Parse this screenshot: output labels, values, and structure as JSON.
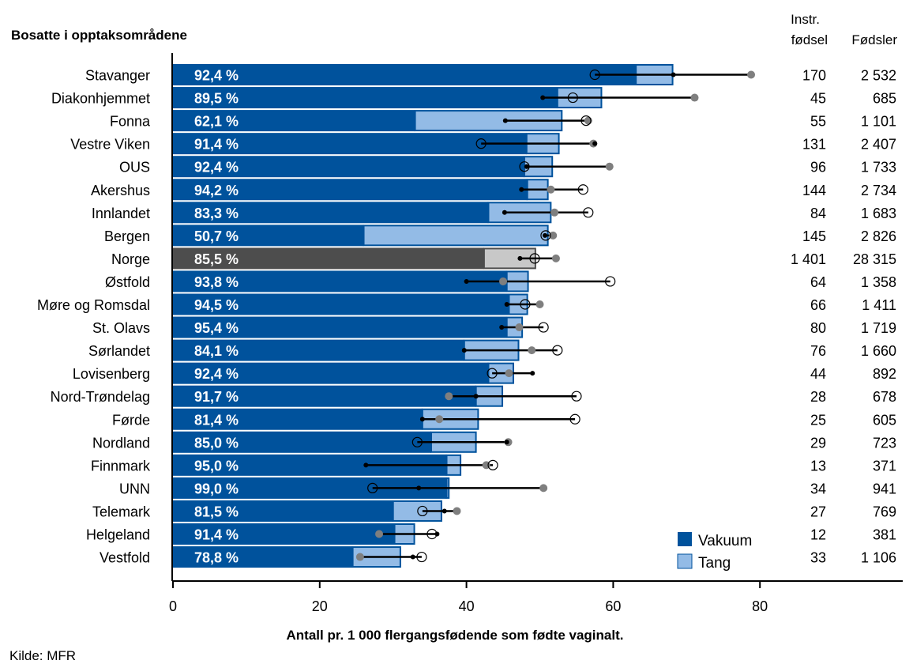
{
  "chart_data": {
    "type": "bar",
    "title": "Bosatte i opptaksområdene",
    "xlabel": "Antall pr. 1 000  flergangsfødende som fødte vaginalt.",
    "source": "Kilde: MFR",
    "xlim": [
      0,
      100
    ],
    "xticks": [
      "0",
      "20",
      "40",
      "60",
      "80"
    ],
    "xtick_values": [
      0,
      20,
      40,
      60,
      80
    ],
    "column_headers": {
      "instr_line1": "Instr.",
      "instr_line2": "fødsel",
      "births": "Fødsler"
    },
    "legend": [
      {
        "name": "Vakuum",
        "color": "#00529c"
      },
      {
        "name": "Tang",
        "color": "#93bbe6"
      }
    ],
    "highlight_colors": {
      "vakuum": "#4d4d4d",
      "tang": "#c8c8c8"
    },
    "categories": [
      "Stavanger",
      "Diakonhjemmet",
      "Fonna",
      "Vestre Viken",
      "OUS",
      "Akershus",
      "Innlandet",
      "Bergen",
      "Norge",
      "Østfold",
      "Møre og Romsdal",
      "St. Olavs",
      "Sørlandet",
      "Lovisenberg",
      "Nord-Trøndelag",
      "Førde",
      "Nordland",
      "Finnmark",
      "UNN",
      "Telemark",
      "Helgeland",
      "Vestfold"
    ],
    "highlight": "Norge",
    "series": [
      {
        "name": "Vakuum",
        "values": [
          63.1,
          52.4,
          33.0,
          48.2,
          47.9,
          48.3,
          43.0,
          26.0,
          42.4,
          45.5,
          45.8,
          45.5,
          39.7,
          43.0,
          41.3,
          34.0,
          35.2,
          37.3,
          37.3,
          30.0,
          30.2,
          24.5
        ]
      },
      {
        "name": "Tang",
        "values": [
          5.1,
          6.1,
          20.1,
          4.5,
          3.9,
          2.9,
          8.6,
          25.2,
          7.1,
          3.0,
          2.6,
          2.2,
          7.5,
          3.5,
          3.7,
          7.7,
          6.2,
          2.0,
          0.4,
          6.7,
          2.8,
          6.6
        ]
      }
    ],
    "error_bars": {
      "dot_black": [
        68.2,
        50.4,
        45.3,
        57.5,
        48.2,
        47.5,
        45.2,
        50.7,
        47.3,
        40.0,
        45.5,
        44.8,
        39.7,
        49.0,
        41.3,
        34.0,
        45.5,
        26.3,
        33.5,
        37.0,
        36.0,
        32.7
      ],
      "dot_grey": [
        78.8,
        71.1,
        56.6,
        57.3,
        59.5,
        51.5,
        52.0,
        51.8,
        52.2,
        45.0,
        50.0,
        47.2,
        48.9,
        45.8,
        37.6,
        36.3,
        45.7,
        42.7,
        50.5,
        38.7,
        28.1,
        25.5
      ],
      "dot_open": [
        57.5,
        54.5,
        56.3,
        42.0,
        47.9,
        55.9,
        56.6,
        50.8,
        49.3,
        59.6,
        48.0,
        50.5,
        52.4,
        43.5,
        55.0,
        54.8,
        33.3,
        43.6,
        27.2,
        34.0,
        35.3,
        33.9
      ]
    },
    "instr_fodsel": [
      "170",
      "45",
      "55",
      "131",
      "96",
      "144",
      "84",
      "145",
      "1 401",
      "64",
      "66",
      "80",
      "76",
      "44",
      "28",
      "25",
      "29",
      "13",
      "34",
      "27",
      "12",
      "33"
    ],
    "fodsler": [
      "2 532",
      "685",
      "1 101",
      "2 407",
      "1 733",
      "2 734",
      "1 683",
      "2 826",
      "28 315",
      "1 358",
      "1 411",
      "1 719",
      "1 660",
      "892",
      "678",
      "605",
      "723",
      "371",
      "941",
      "769",
      "381",
      "1 106"
    ],
    "percent_labels": [
      "92,4 %",
      "89,5 %",
      "62,1 %",
      "91,4 %",
      "92,4 %",
      "94,2 %",
      "83,3 %",
      "50,7 %",
      "85,5 %",
      "93,8 %",
      "94,5 %",
      "95,4 %",
      "84,1 %",
      "92,4 %",
      "91,7 %",
      "81,4 %",
      "85,0 %",
      "95,0 %",
      "99,0 %",
      "81,5 %",
      "91,4 %",
      "78,8 %"
    ]
  }
}
